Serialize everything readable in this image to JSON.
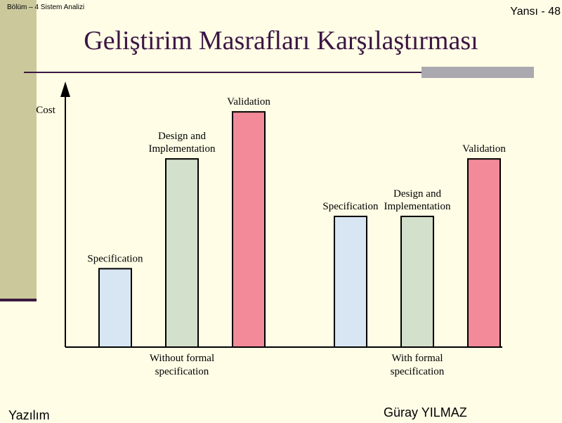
{
  "header": {
    "chapter": "Bölüm – 4 Sistem Analizi",
    "slide_number": "Yansı - 48",
    "title": "Geliştirim Masrafları Karşılaştırması"
  },
  "footer": {
    "left": "Yazılım",
    "right": "Güray YILMAZ"
  },
  "colors": {
    "background": "#fffde6",
    "title": "#3b1643",
    "specification": "#d8e6f3",
    "design": "#d3e0cc",
    "validation": "#f28a99"
  },
  "chart_data": {
    "type": "bar",
    "ylabel": "Cost",
    "ylim": [
      0,
      10
    ],
    "groups": [
      {
        "label": [
          "Without formal",
          "specification"
        ],
        "bars": [
          {
            "label": [
              "Specification"
            ],
            "value": 3.0,
            "color": "#d8e6f3"
          },
          {
            "label": [
              "Design and",
              "Implementation"
            ],
            "value": 7.2,
            "color": "#d3e0cc"
          },
          {
            "label": [
              "Validation"
            ],
            "value": 9.0,
            "color": "#f28a99"
          }
        ]
      },
      {
        "label": [
          "With formal",
          "specification"
        ],
        "bars": [
          {
            "label": [
              "Specification"
            ],
            "value": 5.0,
            "color": "#d8e6f3"
          },
          {
            "label": [
              "Design and",
              "Implementation"
            ],
            "value": 5.0,
            "color": "#d3e0cc"
          },
          {
            "label": [
              "Validation"
            ],
            "value": 7.2,
            "color": "#f28a99"
          }
        ]
      }
    ]
  }
}
